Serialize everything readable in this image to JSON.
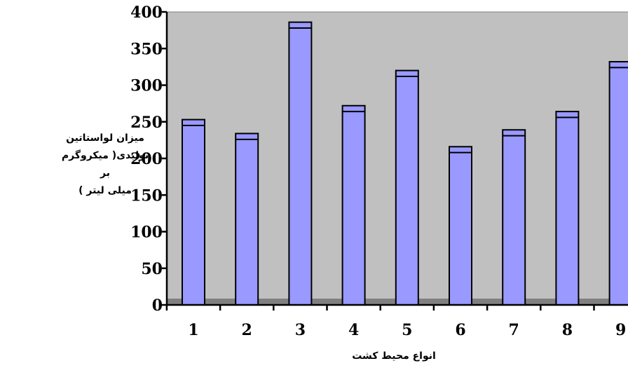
{
  "chart_data": {
    "type": "bar",
    "title": "",
    "xlabel": "انواع محیط کشت",
    "ylabel_lines": [
      "میزان لواستاتین",
      "تولیدی( میکروگرم بر",
      "میلی لیتر )"
    ],
    "categories": [
      "1",
      "2",
      "3",
      "4",
      "5",
      "6",
      "7",
      "8",
      "9"
    ],
    "values": [
      253,
      234,
      386,
      272,
      320,
      216,
      239,
      264,
      332
    ],
    "error_band": [
      8,
      8,
      8,
      8,
      8,
      8,
      8,
      8,
      8
    ],
    "ylim": [
      0,
      400
    ],
    "yticks": [
      0,
      50,
      100,
      150,
      200,
      250,
      300,
      350,
      400
    ],
    "grid": false,
    "legend": "none",
    "colors": {
      "bar": "#9999ff",
      "plot_background": "#c0c0c0",
      "floor": "#808080",
      "axis": "#000000"
    }
  }
}
